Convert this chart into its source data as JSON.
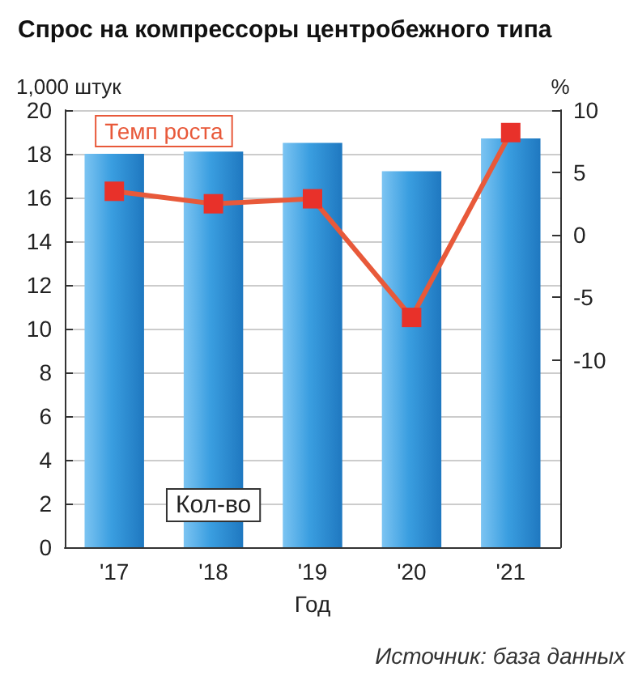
{
  "chart_data": {
    "type": "bar",
    "title": "Спрос на компрессоры центробежного типа",
    "xlabel": "Год",
    "ylabel": "1,000 штук",
    "y2label": "%",
    "categories": [
      "'17",
      "'18",
      "'19",
      "'20",
      "'21"
    ],
    "series": [
      {
        "name": "Кол-во",
        "color": "#3a9ee0",
        "values": [
          18.0,
          18.1,
          18.5,
          17.2,
          18.7
        ]
      },
      {
        "name": "Темп роста",
        "type": "line",
        "axis": "y2",
        "color": "#e8593a",
        "marker": "square",
        "values": [
          3.5,
          2.5,
          2.9,
          -6.6,
          8.2
        ]
      }
    ],
    "ylim": [
      0,
      20
    ],
    "yticks": [
      0,
      2,
      4,
      6,
      8,
      10,
      12,
      14,
      16,
      18,
      20
    ],
    "y2lim": [
      -25,
      10
    ],
    "y2ticks": [
      -10,
      -5,
      0,
      5,
      10
    ],
    "grid": "y",
    "legend": false,
    "annotations": [
      "Источник: база данных"
    ]
  }
}
